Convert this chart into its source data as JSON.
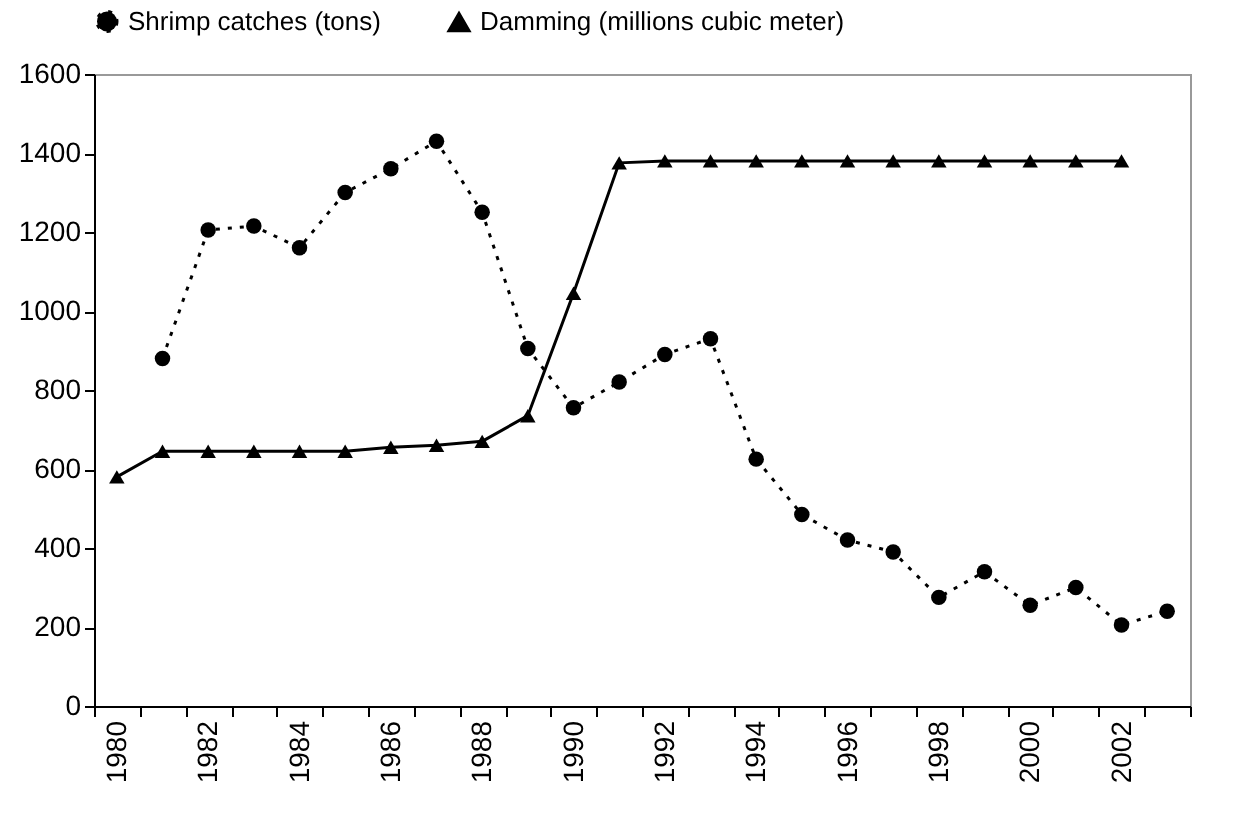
{
  "chart_data": {
    "type": "line",
    "categories": [
      "1980",
      null,
      "1982",
      null,
      "1984",
      null,
      "1986",
      null,
      "1988",
      null,
      "1990",
      null,
      "1992",
      null,
      "1994",
      null,
      "1996",
      null,
      "1998",
      null,
      "2000",
      null,
      "2002",
      null
    ],
    "series": [
      {
        "name": "Shrimp catches (tons)",
        "color": "#000000",
        "marker": "circle",
        "line_style": "dotted",
        "values": [
          null,
          880,
          1205,
          1215,
          1160,
          1300,
          1360,
          1430,
          1250,
          905,
          755,
          820,
          890,
          930,
          625,
          485,
          420,
          390,
          275,
          340,
          255,
          300,
          205,
          240
        ]
      },
      {
        "name": "Damming (millions cubic meter)",
        "color": "#000000",
        "marker": "triangle",
        "line_style": "solid",
        "values": [
          580,
          645,
          645,
          645,
          645,
          645,
          655,
          660,
          670,
          735,
          1045,
          1375,
          1380,
          1380,
          1380,
          1380,
          1380,
          1380,
          1380,
          1380,
          1380,
          1380,
          1380,
          null
        ]
      }
    ],
    "ylim": [
      0,
      1600
    ],
    "yticks": [
      0,
      200,
      400,
      600,
      800,
      1000,
      1200,
      1400,
      1600
    ],
    "grid": false,
    "legend": "top"
  }
}
